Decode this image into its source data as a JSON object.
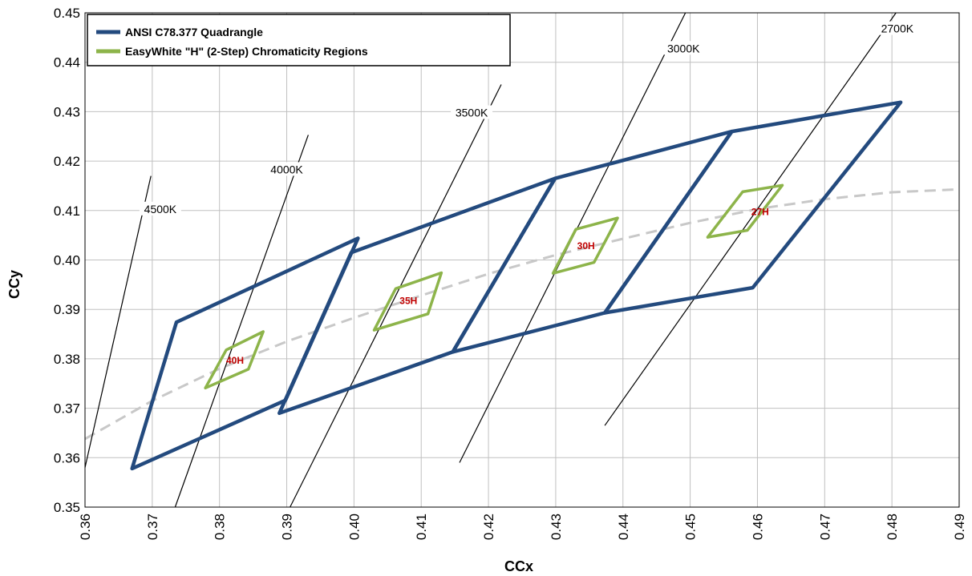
{
  "colors": {
    "ansi": "#234a7e",
    "easywhite": "#8db44a",
    "locus": "#c8c8c8",
    "grid": "#c0c0c0",
    "region_label": "#c00000"
  },
  "chart_data": {
    "type": "line",
    "xlabel": "CCx",
    "ylabel": "CCy",
    "xlim": [
      0.36,
      0.49
    ],
    "ylim": [
      0.35,
      0.45
    ],
    "x_ticks": [
      "0.36",
      "0.37",
      "0.38",
      "0.39",
      "0.40",
      "0.41",
      "0.42",
      "0.43",
      "0.44",
      "0.45",
      "0.46",
      "0.47",
      "0.48",
      "0.49"
    ],
    "y_ticks": [
      "0.35",
      "0.36",
      "0.37",
      "0.38",
      "0.39",
      "0.40",
      "0.41",
      "0.42",
      "0.43",
      "0.44",
      "0.45"
    ],
    "grid": true,
    "legend": {
      "placement": "top-left",
      "entries": [
        {
          "name": "ANSI C78.377 Quadrangle",
          "color": "#234a7e"
        },
        {
          "name": "EasyWhite \"H\" (2-Step) Chromaticity Regions",
          "color": "#8db44a"
        }
      ]
    },
    "planckian_locus": [
      [
        0.36,
        0.3638
      ],
      [
        0.37,
        0.3715
      ],
      [
        0.38,
        0.378
      ],
      [
        0.39,
        0.3835
      ],
      [
        0.4,
        0.3883
      ],
      [
        0.41,
        0.3928
      ],
      [
        0.42,
        0.3972
      ],
      [
        0.43,
        0.401
      ],
      [
        0.44,
        0.4043
      ],
      [
        0.45,
        0.4075
      ],
      [
        0.46,
        0.4103
      ],
      [
        0.47,
        0.4123
      ],
      [
        0.48,
        0.4137
      ],
      [
        0.49,
        0.4143
      ]
    ],
    "cct_lines": [
      {
        "label": "4500K",
        "points": [
          [
            0.36,
            0.358
          ],
          [
            0.3698,
            0.417
          ]
        ],
        "label_pos": [
          0.3712,
          0.41
        ]
      },
      {
        "label": "4000K",
        "points": [
          [
            0.3734,
            0.35
          ],
          [
            0.3932,
            0.4253
          ]
        ],
        "label_pos": [
          0.39,
          0.418
        ]
      },
      {
        "label": "3500K",
        "points": [
          [
            0.3905,
            0.35
          ],
          [
            0.4219,
            0.4355
          ]
        ],
        "label_pos": [
          0.4175,
          0.4295
        ]
      },
      {
        "label": "3000K",
        "points": [
          [
            0.4157,
            0.359
          ],
          [
            0.4493,
            0.45
          ]
        ],
        "label_pos": [
          0.449,
          0.4425
        ]
      },
      {
        "label": "2700K",
        "points": [
          [
            0.4373,
            0.3665
          ],
          [
            0.4806,
            0.45
          ]
        ],
        "label_pos": [
          0.4808,
          0.4465
        ]
      }
    ],
    "ansi_quadrangles": [
      {
        "points": [
          [
            0.3736,
            0.3874
          ],
          [
            0.4006,
            0.4044
          ],
          [
            0.3898,
            0.3716
          ],
          [
            0.367,
            0.3578
          ]
        ]
      },
      {
        "points": [
          [
            0.3996,
            0.4015
          ],
          [
            0.4299,
            0.4165
          ],
          [
            0.4147,
            0.3814
          ],
          [
            0.3889,
            0.369
          ]
        ]
      },
      {
        "points": [
          [
            0.4299,
            0.4165
          ],
          [
            0.4562,
            0.426
          ],
          [
            0.4373,
            0.3893
          ],
          [
            0.4147,
            0.3814
          ]
        ]
      },
      {
        "points": [
          [
            0.4562,
            0.426
          ],
          [
            0.4813,
            0.4319
          ],
          [
            0.4593,
            0.3944
          ],
          [
            0.4373,
            0.3893
          ]
        ]
      }
    ],
    "easywhite_regions": [
      {
        "label": "40H",
        "label_pos": [
          0.3823,
          0.3797
        ],
        "points": [
          [
            0.381,
            0.3818
          ],
          [
            0.3865,
            0.3855
          ],
          [
            0.3843,
            0.3779
          ],
          [
            0.3779,
            0.3741
          ]
        ]
      },
      {
        "label": "35H",
        "label_pos": [
          0.4081,
          0.3917
        ],
        "points": [
          [
            0.4062,
            0.3942
          ],
          [
            0.413,
            0.3974
          ],
          [
            0.411,
            0.3891
          ],
          [
            0.403,
            0.3858
          ]
        ]
      },
      {
        "label": "30H",
        "label_pos": [
          0.4345,
          0.4028
        ],
        "points": [
          [
            0.433,
            0.4062
          ],
          [
            0.4392,
            0.4085
          ],
          [
            0.4357,
            0.3995
          ],
          [
            0.4296,
            0.3973
          ]
        ]
      },
      {
        "label": "27H",
        "label_pos": [
          0.4604,
          0.4097
        ],
        "points": [
          [
            0.4578,
            0.4138
          ],
          [
            0.4637,
            0.4151
          ],
          [
            0.4585,
            0.406
          ],
          [
            0.4526,
            0.4046
          ]
        ]
      }
    ]
  }
}
